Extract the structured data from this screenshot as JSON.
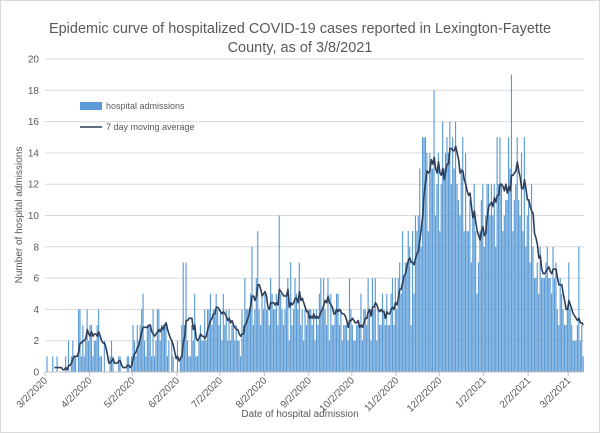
{
  "chart_data": {
    "type": "bar",
    "title_line1": "Epidemic curve of hospitalized COVID-19 cases reported in Lexington-Fayette",
    "title_line2": "County, as of 3/8/2021",
    "xlabel": "Date of hospital admission",
    "ylabel": "Number of hospital admissions",
    "ylim": [
      0,
      20
    ],
    "yticks": [
      "0",
      "2",
      "4",
      "6",
      "8",
      "10",
      "12",
      "14",
      "16",
      "18",
      "20"
    ],
    "xticks": [
      "3/2/2020",
      "4/2/2020",
      "5/2/2020",
      "6/2/2020",
      "7/2/2020",
      "8/2/2020",
      "9/2/2020",
      "10/2/2020",
      "11/2/2020",
      "12/2/2020",
      "1/2/2021",
      "2/2/2021",
      "3/2/2021"
    ],
    "xtick_day_index": [
      0,
      31,
      61,
      92,
      122,
      153,
      184,
      214,
      245,
      275,
      306,
      337,
      365
    ],
    "start_date": "3/2/2020",
    "legend": {
      "placement": "upper-left",
      "bar_label": "hospital admissions",
      "line_label": "7 day moving average"
    },
    "colors": {
      "bar": "#5b9bd5",
      "line": "#2f3e58",
      "grid": "#d9d9d9"
    },
    "series": [
      {
        "name": "hospital admissions",
        "values": [
          0,
          1,
          0,
          0,
          0,
          1,
          0,
          0,
          1,
          0,
          0,
          0,
          0,
          0,
          1,
          0,
          2,
          0,
          1,
          2,
          1,
          1,
          0,
          4,
          4,
          1,
          3,
          1,
          2,
          4,
          2,
          3,
          3,
          1,
          2,
          2,
          3,
          4,
          1,
          1,
          0,
          2,
          0,
          0,
          0,
          1,
          2,
          1,
          0,
          0,
          0,
          1,
          1,
          0,
          0,
          0,
          0,
          1,
          1,
          0,
          1,
          3,
          2,
          1,
          3,
          2,
          3,
          4,
          5,
          2,
          1,
          3,
          3,
          3,
          1,
          4,
          1,
          2,
          4,
          4,
          2,
          3,
          3,
          3,
          3,
          1,
          2,
          0,
          2,
          1,
          0,
          0,
          2,
          0,
          1,
          3,
          7,
          3,
          7,
          2,
          1,
          1,
          3,
          2,
          5,
          1,
          1,
          2,
          3,
          2,
          2,
          4,
          2,
          4,
          4,
          5,
          3,
          4,
          4,
          5,
          4,
          3,
          4,
          2,
          5,
          3,
          4,
          2,
          4,
          2,
          3,
          3,
          2,
          3,
          2,
          2,
          1,
          4,
          3,
          6,
          4,
          4,
          4,
          5,
          8,
          3,
          4,
          6,
          9,
          4,
          3,
          5,
          4,
          5,
          4,
          4,
          3,
          6,
          5,
          4,
          4,
          5,
          3,
          10,
          5,
          4,
          3,
          4,
          5,
          6,
          2,
          7,
          3,
          4,
          6,
          5,
          4,
          7,
          3,
          4,
          2,
          4,
          3,
          4,
          4,
          4,
          3,
          4,
          2,
          4,
          3,
          5,
          6,
          4,
          6,
          4,
          3,
          6,
          2,
          5,
          3,
          3,
          4,
          5,
          5,
          3,
          4,
          2,
          3,
          3,
          3,
          2,
          6,
          4,
          3,
          2,
          2,
          3,
          3,
          3,
          5,
          2,
          4,
          4,
          3,
          6,
          4,
          2,
          6,
          4,
          6,
          2,
          4,
          3,
          3,
          5,
          4,
          3,
          5,
          3,
          3,
          5,
          6,
          3,
          6,
          4,
          6,
          7,
          5,
          9,
          6,
          7,
          7,
          9,
          8,
          3,
          9,
          5,
          10,
          9,
          10,
          13,
          8,
          15,
          15,
          15,
          14,
          9,
          14,
          13,
          13,
          18,
          10,
          12,
          14,
          9,
          12,
          16,
          13,
          14,
          15,
          14,
          16,
          12,
          15,
          13,
          16,
          12,
          11,
          10,
          13,
          15,
          9,
          14,
          9,
          9,
          11,
          7,
          10,
          12,
          9,
          5,
          7,
          9,
          11,
          12,
          8,
          10,
          12,
          12,
          10,
          12,
          10,
          12,
          8,
          15,
          12,
          15,
          12,
          9,
          10,
          11,
          11,
          15,
          13,
          19,
          9,
          11,
          12,
          15,
          11,
          10,
          14,
          9,
          15,
          8,
          10,
          11,
          7,
          12,
          8,
          6,
          6,
          7,
          5,
          8,
          6,
          6,
          6,
          7,
          8,
          6,
          6,
          5,
          8,
          6,
          7,
          4,
          3,
          6,
          5,
          4,
          3,
          3,
          4,
          7,
          4,
          3,
          2,
          2,
          2,
          3,
          8,
          2,
          3,
          1
        ]
      },
      {
        "name": "7 day moving average",
        "derived_from": "hospital admissions",
        "window": 7
      }
    ]
  }
}
